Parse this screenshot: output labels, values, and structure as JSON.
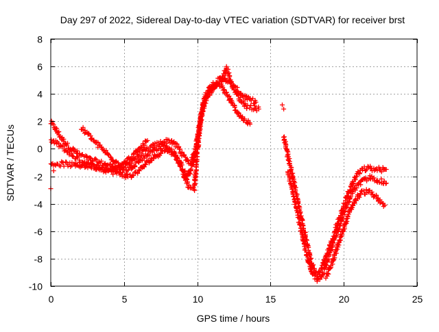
{
  "chart_data": {
    "type": "scatter",
    "title": "Day 297 of 2022, Sidereal Day-to-day VTEC variation (SDTVAR) for receiver brst",
    "xlabel": "GPS time / hours",
    "ylabel": "SDTVAR / TECUs",
    "xlim": [
      0,
      25
    ],
    "ylim": [
      -10,
      8
    ],
    "xticks": [
      0,
      5,
      10,
      15,
      20,
      25
    ],
    "yticks": [
      -10,
      -8,
      -6,
      -4,
      -2,
      0,
      2,
      4,
      6,
      8
    ],
    "grid": true,
    "marker": "+",
    "color": "#ff0000",
    "series": [
      {
        "x": [
          0.0,
          0.3,
          0.7,
          1.2,
          1.8,
          2.5,
          3.3,
          4.0,
          4.6,
          5.2,
          5.8,
          6.4,
          7.0,
          7.6,
          8.2,
          8.7,
          9.1,
          9.5,
          9.9,
          10.2,
          10.5,
          10.9,
          11.3,
          11.8,
          12.2,
          12.7,
          13.1,
          13.5,
          14.0
        ],
        "y": [
          1.9,
          1.5,
          0.8,
          0.2,
          -0.3,
          -0.7,
          -1.0,
          -1.2,
          -1.3,
          -1.2,
          -0.6,
          -0.2,
          0.2,
          0.5,
          0.6,
          0.1,
          -0.6,
          -1.0,
          -0.2,
          2.0,
          3.8,
          4.6,
          4.9,
          5.2,
          4.8,
          4.3,
          3.9,
          3.6,
          3.4
        ]
      },
      {
        "x": [
          0.0,
          0.4,
          0.9,
          1.5,
          2.1,
          2.8,
          3.5,
          4.2,
          4.8,
          5.4,
          6.0,
          6.6,
          7.2,
          7.8,
          8.4,
          8.9,
          9.3,
          9.7,
          10.0,
          10.3,
          10.7,
          11.1,
          11.6,
          12.0,
          12.4,
          12.9,
          13.4,
          13.9,
          14.2
        ],
        "y": [
          0.6,
          0.4,
          0.0,
          -0.5,
          -0.9,
          -1.2,
          -1.4,
          -1.5,
          -1.6,
          -1.4,
          -0.9,
          -0.4,
          0.0,
          0.2,
          -0.3,
          -1.2,
          -2.1,
          -1.2,
          0.8,
          2.6,
          3.9,
          4.4,
          4.8,
          5.9,
          4.6,
          3.6,
          3.1,
          3.0,
          2.9
        ]
      },
      {
        "x": [
          0.0,
          0.5,
          1.0,
          1.6,
          2.2,
          2.9,
          3.6,
          4.3,
          4.9,
          5.5,
          6.1,
          6.7,
          7.3,
          7.9,
          8.5,
          9.0,
          9.4,
          9.8,
          10.1,
          10.4,
          10.8,
          11.3,
          11.7,
          12.1,
          12.6,
          13.1,
          13.6
        ],
        "y": [
          -1.1,
          -1.1,
          -1.1,
          -1.2,
          -1.2,
          -1.3,
          -1.5,
          -1.7,
          -1.9,
          -2.0,
          -1.5,
          -0.9,
          -0.4,
          0.0,
          -0.4,
          -1.6,
          -2.8,
          -2.9,
          0.9,
          3.2,
          4.2,
          4.7,
          4.5,
          3.8,
          2.9,
          2.2,
          1.8
        ]
      },
      {
        "x": [
          2.1,
          2.6,
          3.2,
          3.8,
          4.3,
          4.8,
          5.2,
          5.7,
          6.2,
          6.6
        ],
        "y": [
          1.5,
          1.0,
          0.3,
          -0.3,
          -0.8,
          -1.2,
          -0.9,
          -0.4,
          0.1,
          0.6
        ]
      },
      {
        "x": [
          0.0,
          0.2,
          15.8,
          15.9
        ],
        "y": [
          -2.9,
          -1.6,
          3.2,
          2.9
        ]
      },
      {
        "x": [
          15.9,
          16.3,
          16.7,
          17.1,
          17.5,
          17.9,
          18.2,
          18.5,
          18.9,
          19.3,
          19.7,
          20.1,
          20.5,
          20.9,
          21.3,
          21.7,
          22.1,
          22.5,
          22.9
        ],
        "y": [
          0.8,
          -1.0,
          -3.0,
          -5.0,
          -7.0,
          -8.7,
          -9.2,
          -8.7,
          -7.6,
          -6.3,
          -5.0,
          -3.8,
          -2.7,
          -1.9,
          -1.5,
          -1.4,
          -1.5,
          -1.5,
          -1.5
        ]
      },
      {
        "x": [
          16.2,
          16.6,
          17.0,
          17.4,
          17.8,
          18.2,
          18.6,
          19.0,
          19.4,
          19.8,
          20.2,
          20.6,
          21.0,
          21.4,
          21.8,
          22.2,
          22.6,
          22.9
        ],
        "y": [
          -1.8,
          -3.5,
          -5.5,
          -7.5,
          -9.0,
          -9.5,
          -9.0,
          -7.8,
          -6.5,
          -5.3,
          -4.1,
          -3.1,
          -2.6,
          -2.3,
          -2.1,
          -2.2,
          -2.4,
          -2.5
        ]
      },
      {
        "x": [
          18.8,
          19.2,
          19.6,
          20.0,
          20.4,
          20.8,
          21.2,
          21.6,
          22.0,
          22.4,
          22.8
        ],
        "y": [
          -9.3,
          -8.3,
          -7.1,
          -5.8,
          -4.6,
          -3.7,
          -3.2,
          -3.1,
          -3.3,
          -3.8,
          -4.1
        ]
      }
    ]
  }
}
